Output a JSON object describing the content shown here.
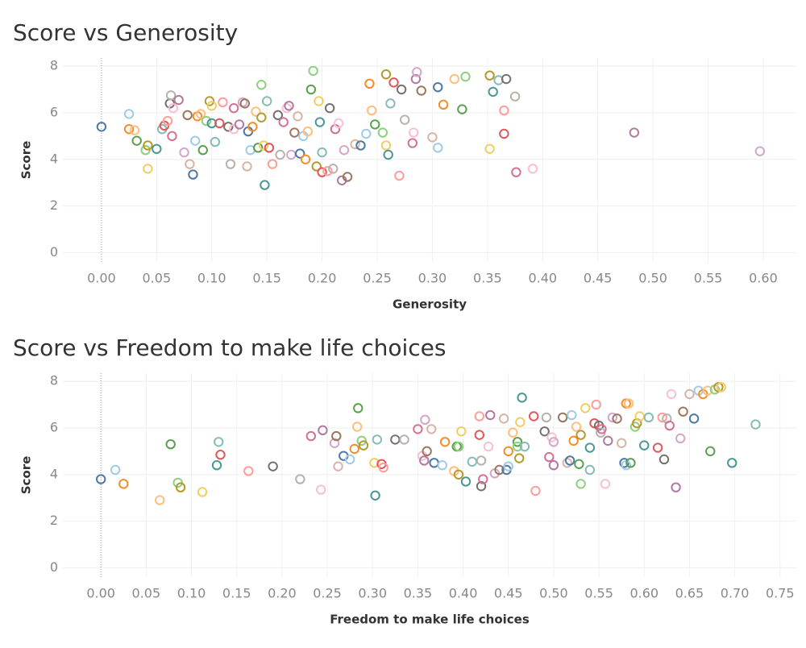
{
  "chart_data": [
    {
      "type": "scatter",
      "title": "Score vs Generosity",
      "x_label": "Generosity",
      "y_label": "Score",
      "xlim": [
        -0.035,
        0.63
      ],
      "ylim": [
        -0.4,
        8.35
      ],
      "grid": true,
      "xticks": [
        {
          "value": 0,
          "label": "0.00"
        },
        {
          "value": 0.05,
          "label": "0.05"
        },
        {
          "value": 0.1,
          "label": "0.10"
        },
        {
          "value": 0.15,
          "label": "0.15"
        },
        {
          "value": 0.2,
          "label": "0.20"
        },
        {
          "value": 0.25,
          "label": "0.25"
        },
        {
          "value": 0.3,
          "label": "0.30"
        },
        {
          "value": 0.35,
          "label": "0.35"
        },
        {
          "value": 0.4,
          "label": "0.40"
        },
        {
          "value": 0.45,
          "label": "0.45"
        },
        {
          "value": 0.5,
          "label": "0.50"
        },
        {
          "value": 0.55,
          "label": "0.55"
        },
        {
          "value": 0.6,
          "label": "0.60"
        }
      ],
      "yticks": [
        0,
        2,
        4,
        6,
        8
      ],
      "palette": [
        "#4e79a7",
        "#a0cbe8",
        "#f28e2b",
        "#ffbe7d",
        "#59a14f",
        "#8cd17d",
        "#b6992d",
        "#f1ce63",
        "#499894",
        "#86bcb6",
        "#e15759",
        "#ff9d9a",
        "#79706e",
        "#bab0ac",
        "#d37295",
        "#fabfd2",
        "#b07aa1",
        "#d4a6c8",
        "#9d7660",
        "#d7b5a6"
      ],
      "x": [
        0.0,
        0.025,
        0.025,
        0.03,
        0.032,
        0.04,
        0.042,
        0.042,
        0.05,
        0.055,
        0.057,
        0.06,
        0.062,
        0.063,
        0.064,
        0.065,
        0.07,
        0.075,
        0.078,
        0.08,
        0.083,
        0.085,
        0.087,
        0.09,
        0.092,
        0.095,
        0.098,
        0.1,
        0.1,
        0.103,
        0.107,
        0.11,
        0.115,
        0.117,
        0.12,
        0.12,
        0.125,
        0.128,
        0.13,
        0.132,
        0.133,
        0.135,
        0.137,
        0.14,
        0.142,
        0.145,
        0.145,
        0.147,
        0.148,
        0.15,
        0.152,
        0.155,
        0.16,
        0.162,
        0.165,
        0.168,
        0.17,
        0.172,
        0.175,
        0.178,
        0.18,
        0.183,
        0.185,
        0.187,
        0.19,
        0.192,
        0.195,
        0.197,
        0.198,
        0.2,
        0.2,
        0.205,
        0.207,
        0.21,
        0.212,
        0.215,
        0.218,
        0.22,
        0.223,
        0.23,
        0.235,
        0.24,
        0.243,
        0.245,
        0.248,
        0.255,
        0.258,
        0.258,
        0.26,
        0.262,
        0.265,
        0.27,
        0.272,
        0.275,
        0.282,
        0.283,
        0.285,
        0.286,
        0.29,
        0.3,
        0.305,
        0.305,
        0.31,
        0.32,
        0.327,
        0.33,
        0.352,
        0.352,
        0.355,
        0.36,
        0.365,
        0.365,
        0.367,
        0.375,
        0.376,
        0.391,
        0.483,
        0.597
      ],
      "values": [
        5.4,
        5.95,
        5.3,
        5.25,
        4.8,
        4.4,
        4.6,
        3.6,
        4.45,
        5.3,
        5.45,
        5.65,
        6.4,
        6.75,
        5.0,
        6.2,
        6.55,
        4.3,
        5.9,
        3.8,
        3.35,
        4.8,
        5.85,
        5.95,
        4.4,
        5.65,
        6.5,
        6.3,
        5.55,
        4.75,
        5.55,
        6.45,
        5.4,
        3.8,
        6.2,
        5.3,
        5.5,
        6.45,
        6.4,
        3.7,
        5.2,
        4.4,
        5.4,
        6.05,
        4.5,
        7.2,
        5.8,
        4.6,
        2.9,
        6.5,
        4.5,
        3.8,
        5.9,
        4.2,
        5.6,
        6.2,
        6.3,
        4.2,
        5.15,
        5.85,
        4.25,
        5.0,
        4.0,
        5.2,
        7.0,
        7.8,
        3.7,
        6.5,
        5.6,
        4.3,
        3.45,
        3.5,
        6.2,
        3.6,
        5.3,
        5.55,
        3.1,
        4.4,
        3.25,
        4.65,
        4.6,
        5.1,
        7.25,
        6.1,
        5.5,
        5.15,
        7.65,
        4.6,
        4.2,
        6.4,
        7.3,
        3.3,
        7.0,
        5.7,
        4.7,
        5.15,
        7.45,
        7.75,
        6.95,
        4.95,
        7.1,
        4.5,
        6.35,
        7.45,
        6.15,
        7.55,
        7.6,
        4.45,
        6.9,
        7.4,
        5.1,
        6.1,
        7.45,
        6.7,
        3.45,
        3.6,
        5.15,
        4.35
      ]
    },
    {
      "type": "scatter",
      "title": "Score vs Freedom to make life choices",
      "x_label": "Freedom to make life choices",
      "y_label": "Score",
      "xlim": [
        -0.042,
        0.768
      ],
      "ylim": [
        -0.4,
        8.35
      ],
      "grid": true,
      "xticks": [
        {
          "value": 0,
          "label": "0.00"
        },
        {
          "value": 0.05,
          "label": "0.05"
        },
        {
          "value": 0.1,
          "label": "0.10"
        },
        {
          "value": 0.15,
          "label": "0.15"
        },
        {
          "value": 0.2,
          "label": "0.20"
        },
        {
          "value": 0.25,
          "label": "0.25"
        },
        {
          "value": 0.3,
          "label": "0.30"
        },
        {
          "value": 0.35,
          "label": "0.35"
        },
        {
          "value": 0.4,
          "label": "0.40"
        },
        {
          "value": 0.45,
          "label": "0.45"
        },
        {
          "value": 0.5,
          "label": "0.50"
        },
        {
          "value": 0.55,
          "label": "0.55"
        },
        {
          "value": 0.6,
          "label": "0.60"
        },
        {
          "value": 0.65,
          "label": "0.65"
        },
        {
          "value": 0.7,
          "label": "0.70"
        },
        {
          "value": 0.75,
          "label": "0.75"
        }
      ],
      "yticks": [
        0,
        2,
        4,
        6,
        8
      ],
      "palette": [
        "#4e79a7",
        "#a0cbe8",
        "#f28e2b",
        "#ffbe7d",
        "#59a14f",
        "#8cd17d",
        "#b6992d",
        "#f1ce63",
        "#499894",
        "#86bcb6",
        "#e15759",
        "#ff9d9a",
        "#79706e",
        "#bab0ac",
        "#d37295",
        "#fabfd2",
        "#b07aa1",
        "#d4a6c8",
        "#9d7660",
        "#d7b5a6"
      ],
      "x": [
        0.0,
        0.016,
        0.025,
        0.065,
        0.077,
        0.085,
        0.088,
        0.112,
        0.128,
        0.13,
        0.132,
        0.163,
        0.19,
        0.22,
        0.232,
        0.243,
        0.245,
        0.258,
        0.26,
        0.262,
        0.268,
        0.275,
        0.28,
        0.283,
        0.284,
        0.288,
        0.29,
        0.302,
        0.303,
        0.305,
        0.31,
        0.312,
        0.325,
        0.335,
        0.35,
        0.355,
        0.357,
        0.358,
        0.36,
        0.365,
        0.368,
        0.377,
        0.38,
        0.39,
        0.393,
        0.395,
        0.395,
        0.398,
        0.403,
        0.41,
        0.418,
        0.418,
        0.42,
        0.42,
        0.422,
        0.428,
        0.43,
        0.435,
        0.44,
        0.445,
        0.448,
        0.45,
        0.45,
        0.455,
        0.46,
        0.46,
        0.462,
        0.463,
        0.465,
        0.468,
        0.478,
        0.48,
        0.49,
        0.492,
        0.495,
        0.498,
        0.5,
        0.5,
        0.51,
        0.515,
        0.518,
        0.52,
        0.522,
        0.525,
        0.528,
        0.53,
        0.53,
        0.535,
        0.54,
        0.54,
        0.545,
        0.547,
        0.55,
        0.552,
        0.553,
        0.557,
        0.56,
        0.565,
        0.57,
        0.575,
        0.578,
        0.58,
        0.58,
        0.583,
        0.585,
        0.59,
        0.592,
        0.595,
        0.6,
        0.605,
        0.615,
        0.62,
        0.622,
        0.625,
        0.628,
        0.63,
        0.635,
        0.64,
        0.643,
        0.65,
        0.655,
        0.66,
        0.665,
        0.67,
        0.673,
        0.678,
        0.682,
        0.685,
        0.697,
        0.723
      ],
      "values": [
        3.8,
        4.2,
        3.6,
        2.9,
        5.3,
        3.65,
        3.45,
        3.25,
        4.4,
        5.4,
        4.85,
        4.15,
        4.35,
        3.8,
        5.65,
        3.35,
        5.9,
        5.35,
        5.65,
        4.35,
        4.8,
        4.65,
        5.1,
        6.05,
        6.85,
        5.45,
        5.25,
        4.5,
        3.1,
        5.5,
        4.45,
        4.3,
        5.5,
        5.5,
        5.95,
        4.8,
        4.6,
        6.35,
        5.0,
        5.95,
        4.5,
        4.4,
        5.4,
        4.15,
        5.2,
        5.2,
        4.0,
        5.85,
        3.7,
        4.55,
        5.7,
        6.5,
        3.5,
        4.6,
        3.8,
        5.2,
        6.55,
        4.05,
        4.2,
        6.4,
        4.2,
        4.35,
        5.0,
        5.8,
        5.4,
        5.2,
        4.7,
        6.25,
        7.3,
        5.2,
        6.5,
        3.3,
        5.85,
        6.45,
        4.75,
        5.6,
        4.4,
        5.4,
        6.45,
        4.5,
        4.6,
        6.55,
        5.45,
        6.05,
        4.45,
        3.6,
        5.7,
        6.85,
        5.15,
        4.2,
        6.2,
        7.0,
        6.1,
        5.8,
        5.95,
        3.6,
        5.45,
        6.45,
        6.4,
        5.35,
        4.5,
        4.4,
        7.05,
        7.05,
        4.5,
        6.05,
        6.2,
        6.5,
        5.25,
        6.45,
        5.15,
        6.45,
        4.65,
        6.4,
        6.1,
        7.45,
        3.45,
        5.55,
        6.7,
        7.45,
        6.4,
        7.6,
        7.45,
        7.6,
        5.0,
        7.65,
        7.75,
        7.75,
        4.5,
        6.15
      ]
    }
  ]
}
